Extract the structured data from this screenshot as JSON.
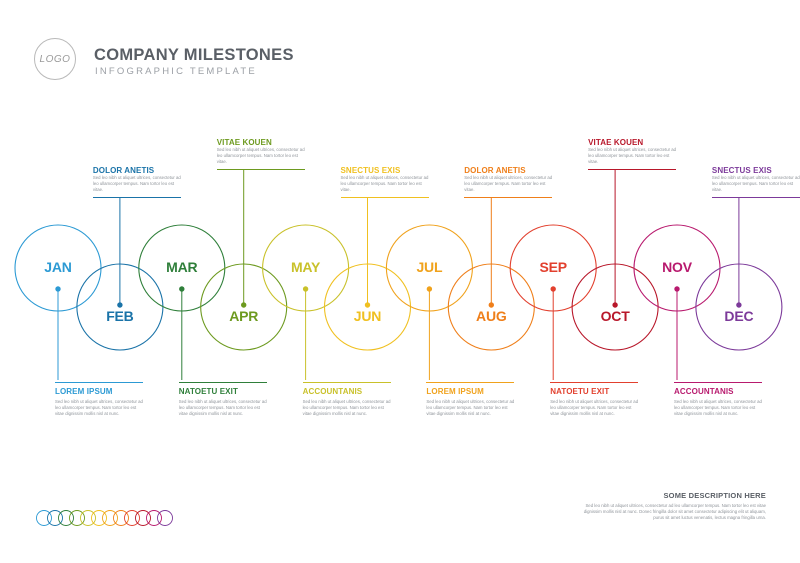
{
  "header": {
    "logo_text": "LOGO",
    "title": "COMPANY MILESTONES",
    "subtitle": "INFOGRAPHIC TEMPLATE"
  },
  "months": [
    {
      "label": "JAN",
      "color": "#2c9ad4"
    },
    {
      "label": "FEB",
      "color": "#1a73a8"
    },
    {
      "label": "MAR",
      "color": "#2f7f3a"
    },
    {
      "label": "APR",
      "color": "#6d9a1f"
    },
    {
      "label": "MAY",
      "color": "#c9c12a"
    },
    {
      "label": "JUN",
      "color": "#f0c020"
    },
    {
      "label": "JUL",
      "color": "#f0a21c"
    },
    {
      "label": "AUG",
      "color": "#ef7f1a"
    },
    {
      "label": "SEP",
      "color": "#e2402e"
    },
    {
      "label": "OCT",
      "color": "#b8172a"
    },
    {
      "label": "NOV",
      "color": "#b81a6e"
    },
    {
      "label": "DEC",
      "color": "#7c3a9a"
    }
  ],
  "callouts_top": [
    {
      "month_index": 1,
      "title": "DOLOR ANETIS",
      "body": "Sed leo nibh ut aliquet ultrices, consectetur ad leo ullamcorper tempus. Nam tortor leo est vitae."
    },
    {
      "month_index": 3,
      "title": "VITAE KOUEN",
      "body": "Sed leo nibh ut aliquet ultrices, consectetur ad leo ullamcorper tempus. Nam tortor leo est vitae."
    },
    {
      "month_index": 5,
      "title": "SNECTUS EXIS",
      "body": "Sed leo nibh ut aliquet ultrices, consectetur ad leo ullamcorper tempus. Nam tortor leo est vitae."
    },
    {
      "month_index": 7,
      "title": "DOLOR ANETIS",
      "body": "Sed leo nibh ut aliquet ultrices, consectetur ad leo ullamcorper tempus. Nam tortor leo est vitae."
    },
    {
      "month_index": 9,
      "title": "VITAE KOUEN",
      "body": "Sed leo nibh ut aliquet ultrices, consectetur ad leo ullamcorper tempus. Nam tortor leo est vitae."
    },
    {
      "month_index": 11,
      "title": "SNECTUS EXIS",
      "body": "Sed leo nibh ut aliquet ultrices, consectetur ad leo ullamcorper tempus. Nam tortor leo est vitae."
    }
  ],
  "callouts_bottom": [
    {
      "month_index": 0,
      "title": "LOREM IPSUM",
      "body": "Sed leo nibh ut aliquet ultrices, consectetur ad leo ullamcorper tempus. Nam tortor leo est vitae dignissim mollis nisl at nunc."
    },
    {
      "month_index": 2,
      "title": "NATOETU EXIT",
      "body": "Sed leo nibh ut aliquet ultrices, consectetur ad leo ullamcorper tempus. Nam tortor leo est vitae dignissim mollis nisl at nunc."
    },
    {
      "month_index": 4,
      "title": "ACCOUNTANIS",
      "body": "Sed leo nibh ut aliquet ultrices, consectetur ad leo ullamcorper tempus. Nam tortor leo est vitae dignissim mollis nisl at nunc."
    },
    {
      "month_index": 6,
      "title": "LOREM IPSUM",
      "body": "Sed leo nibh ut aliquet ultrices, consectetur ad leo ullamcorper tempus. Nam tortor leo est vitae dignissim mollis nisl at nunc."
    },
    {
      "month_index": 8,
      "title": "NATOETU EXIT",
      "body": "Sed leo nibh ut aliquet ultrices, consectetur ad leo ullamcorper tempus. Nam tortor leo est vitae dignissim mollis nisl at nunc."
    },
    {
      "month_index": 10,
      "title": "ACCOUNTANIS",
      "body": "Sed leo nibh ut aliquet ultrices, consectetur ad leo ullamcorper tempus. Nam tortor leo est vitae dignissim mollis nisl at nunc."
    }
  ],
  "description": {
    "title": "SOME DESCRIPTION HERE",
    "body": "Sed leo nibh ut aliquet ultrices, consectetur ad leo ullamcorper tempus. Nam tortor leo est vitae dignissim mollis nisl at nunc. Donec fringilla dolor sit amet consectetur adipiscing elit ut aliquam, purus sit amet luctus venenatis, lectus magna fringilla urna."
  }
}
